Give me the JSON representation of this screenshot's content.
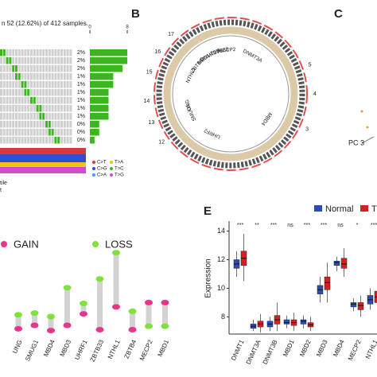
{
  "panel_a": {
    "title": "n 52 (12.62%) of 412 samples.",
    "percents": [
      "2%",
      "2%",
      "2%",
      "1%",
      "1%",
      "1%",
      "1%",
      "1%",
      "1%",
      "0%",
      "0%",
      "0%"
    ],
    "legend": [
      "C>T",
      "T>A",
      "C>G",
      "T>C",
      "C>A",
      "T>G"
    ],
    "footer": [
      "tile",
      "t"
    ]
  },
  "panel_b": {
    "label": "B",
    "genes": [
      "MECP2",
      "ZBTB33",
      "DNMT3B",
      "MBD1",
      "ZBTB4",
      "NTHL1",
      "UNG",
      "SMUG1",
      "UHRF2",
      "MBD4",
      "DNMT3A"
    ],
    "chromosomes": [
      "17",
      "16",
      "15",
      "14",
      "13",
      "12",
      "5",
      "4",
      "3"
    ]
  },
  "panel_c": {
    "label": "C",
    "axis": "PC 3"
  },
  "chart_data": [
    {
      "type": "bar",
      "categories": [
        "2%",
        "2%",
        "2%",
        "1%",
        "1%",
        "1%",
        "1%",
        "1%",
        "1%",
        "0%",
        "0%",
        "0%"
      ],
      "values": [
        8,
        8,
        7,
        5,
        5,
        4,
        4,
        4,
        4,
        2,
        2,
        1
      ],
      "color": "#3cb521",
      "xlim": [
        0,
        8
      ],
      "xticks": [
        0,
        8
      ]
    },
    {
      "type": "lollipop",
      "categories": [
        "UNG",
        "SMUG1",
        "MBD4",
        "MBD3",
        "UHRF1",
        "ZBTB33",
        "NTHL1",
        "ZBTB4",
        "MECP2",
        "MBD1"
      ],
      "ylim": [
        0,
        10
      ],
      "series": [
        {
          "name": "GAIN",
          "color": "#e8348a",
          "values": [
            0.6,
            1.0,
            0.4,
            1.0,
            2.3,
            0.5,
            3.1,
            0.5,
            3.6,
            3.6
          ]
        },
        {
          "name": "LOSS",
          "color": "#7ee23a",
          "values": [
            2.2,
            2.4,
            2.0,
            5.3,
            3.5,
            6.3,
            9.3,
            2.6,
            0.9,
            0.9
          ]
        }
      ]
    },
    {
      "type": "box",
      "label": "E",
      "y_label": "Expression",
      "categories": [
        "DNMT1",
        "DNMT3A",
        "DNMT3B",
        "MBD1",
        "MBD2",
        "MBD3",
        "MBD4",
        "MECP2",
        "NTHL1"
      ],
      "significance": [
        "***",
        "**",
        "***",
        "ns",
        "***",
        "***",
        "ns",
        "*",
        "***"
      ],
      "ylim": [
        6.8,
        14.7
      ],
      "yticks": [
        8,
        10,
        12,
        14
      ],
      "series": [
        {
          "name": "Normal",
          "color": "#2b4bb5",
          "low": [
            10.8,
            7.0,
            7.0,
            7.2,
            7.2,
            9.0,
            11.2,
            8.4,
            8.5
          ],
          "q1": [
            11.4,
            7.2,
            7.3,
            7.5,
            7.5,
            9.6,
            11.6,
            8.7,
            8.9
          ],
          "median": [
            11.7,
            7.35,
            7.5,
            7.6,
            7.7,
            9.9,
            11.8,
            8.9,
            9.2
          ],
          "q3": [
            12.0,
            7.5,
            7.7,
            7.8,
            7.8,
            10.2,
            11.9,
            9.0,
            9.5
          ],
          "high": [
            12.6,
            7.8,
            8.0,
            8.1,
            8.1,
            10.8,
            12.2,
            9.3,
            10.0
          ]
        },
        {
          "name": "T",
          "color": "#d42020",
          "low": [
            10.5,
            6.9,
            7.0,
            7.0,
            7.0,
            9.0,
            10.8,
            8.0,
            8.4
          ],
          "q1": [
            11.6,
            7.3,
            7.5,
            7.4,
            7.3,
            9.9,
            11.4,
            8.5,
            9.0
          ],
          "median": [
            12.1,
            7.5,
            7.8,
            7.6,
            7.45,
            10.4,
            11.7,
            8.8,
            9.4
          ],
          "q3": [
            12.6,
            7.7,
            8.1,
            7.8,
            7.6,
            10.8,
            12.1,
            9.0,
            9.8
          ],
          "high": [
            13.8,
            8.2,
            9.0,
            8.3,
            8.0,
            11.8,
            12.8,
            9.5,
            10.6
          ]
        }
      ]
    }
  ]
}
